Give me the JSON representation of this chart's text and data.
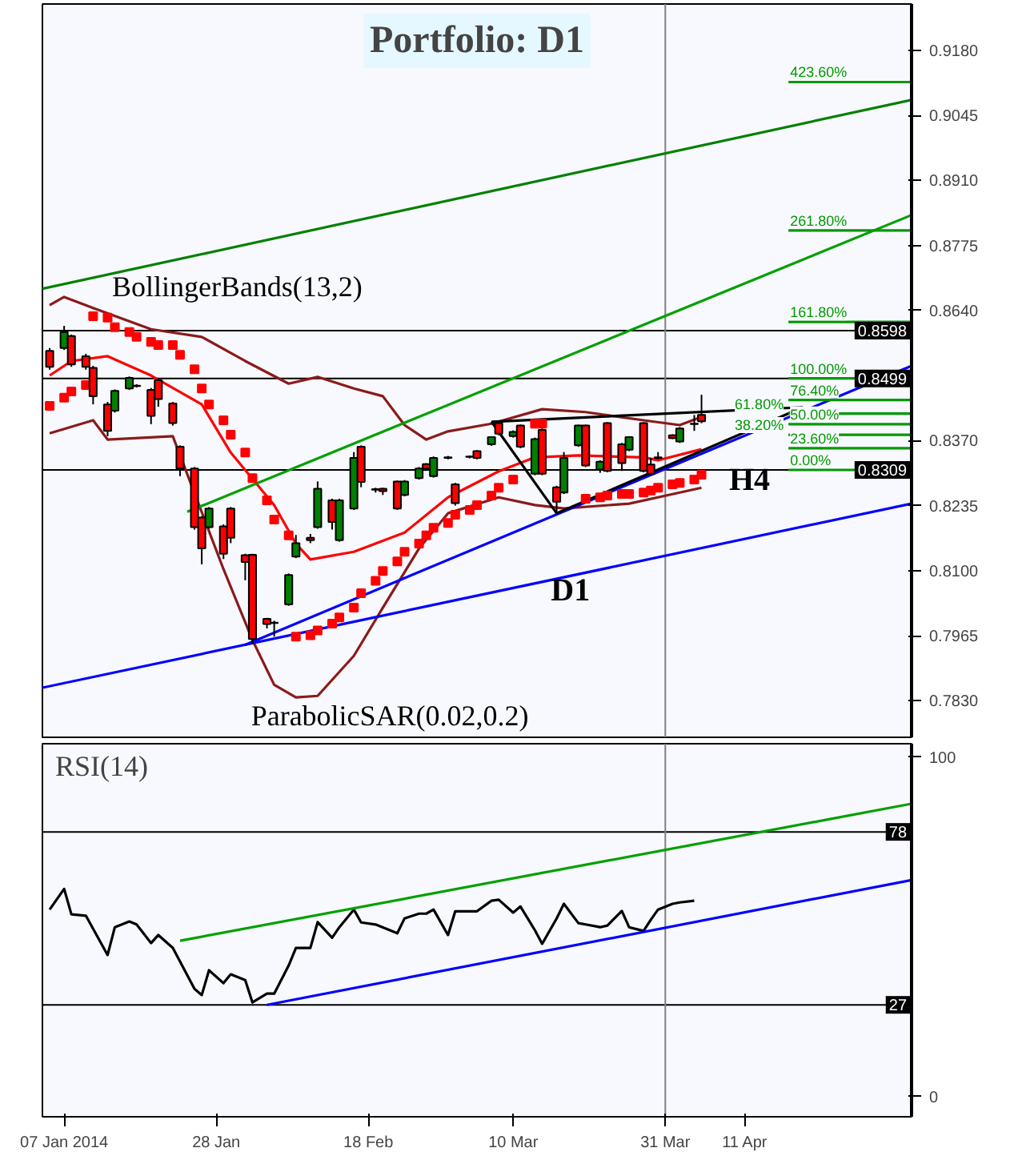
{
  "chart_data": [
    {
      "type": "candlestick",
      "title": "Portfolio: D1",
      "x": [
        "2014-01-05",
        "2014-01-07",
        "2014-01-08",
        "2014-01-10",
        "2014-01-11",
        "2014-01-13",
        "2014-01-14",
        "2014-01-16",
        "2014-01-17",
        "2014-01-19",
        "2014-01-20",
        "2014-01-22",
        "2014-01-23",
        "2014-01-25",
        "2014-01-26",
        "2014-01-27",
        "2014-01-29",
        "2014-01-30",
        "2014-02-01",
        "2014-02-02",
        "2014-02-04",
        "2014-02-05",
        "2014-02-07",
        "2014-02-08",
        "2014-02-10",
        "2014-02-11",
        "2014-02-13",
        "2014-02-14",
        "2014-02-16",
        "2014-02-17",
        "2014-02-19",
        "2014-02-20",
        "2014-02-22",
        "2014-02-23",
        "2014-02-25",
        "2014-02-26",
        "2014-02-27",
        "2014-03-01",
        "2014-03-02",
        "2014-03-04",
        "2014-03-05",
        "2014-03-07",
        "2014-03-08",
        "2014-03-10",
        "2014-03-11",
        "2014-03-13",
        "2014-03-14",
        "2014-03-16",
        "2014-03-17",
        "2014-03-19",
        "2014-03-20",
        "2014-03-22",
        "2014-03-23",
        "2014-03-25",
        "2014-03-26",
        "2014-03-28",
        "2014-03-29",
        "2014-03-30",
        "2014-04-01",
        "2014-04-02",
        "2014-04-04",
        "2014-04-05"
      ],
      "ohlc": [
        [
          0.8556,
          0.8562,
          0.8517,
          0.8523
        ],
        [
          0.8562,
          0.8608,
          0.8558,
          0.8595
        ],
        [
          0.8587,
          0.859,
          0.8523,
          0.8528
        ],
        [
          0.8545,
          0.855,
          0.8517,
          0.8523
        ],
        [
          0.8521,
          0.8525,
          0.8445,
          0.8462
        ],
        [
          0.8445,
          0.845,
          0.8379,
          0.839
        ],
        [
          0.8432,
          0.8476,
          0.8428,
          0.8473
        ],
        [
          0.8478,
          0.8503,
          0.8475,
          0.85
        ],
        [
          0.8484,
          0.8487,
          0.848,
          0.8483
        ],
        [
          0.8475,
          0.8479,
          0.8404,
          0.8421
        ],
        [
          0.8495,
          0.85,
          0.844,
          0.8456
        ],
        [
          0.8447,
          0.845,
          0.8401,
          0.8406
        ],
        [
          0.8357,
          0.836,
          0.8296,
          0.8312
        ],
        [
          0.8312,
          0.8315,
          0.8185,
          0.819
        ],
        [
          0.821,
          0.8213,
          0.8113,
          0.8146
        ],
        [
          0.819,
          0.8232,
          0.8187,
          0.8229
        ],
        [
          0.8192,
          0.8196,
          0.8124,
          0.8135
        ],
        [
          0.8229,
          0.8232,
          0.8157,
          0.8168
        ],
        [
          0.8132,
          0.8135,
          0.808,
          0.8118
        ],
        [
          0.8133,
          0.8135,
          0.7947,
          0.7958
        ],
        [
          0.8,
          0.8002,
          0.798,
          0.7989
        ],
        [
          0.7992,
          0.7996,
          0.7963,
          0.7991
        ],
        [
          0.803,
          0.8094,
          0.8027,
          0.8091
        ],
        [
          0.8129,
          0.8174,
          0.8126,
          0.8157
        ],
        [
          0.8168,
          0.8176,
          0.8157,
          0.8163
        ],
        [
          0.819,
          0.8285,
          0.8187,
          0.827
        ],
        [
          0.8246,
          0.8249,
          0.8185,
          0.8201
        ],
        [
          0.8163,
          0.8249,
          0.816,
          0.8246
        ],
        [
          0.8229,
          0.8346,
          0.8226,
          0.8334
        ],
        [
          0.8357,
          0.836,
          0.8273,
          0.8284
        ],
        [
          0.8269,
          0.8272,
          0.8262,
          0.8268
        ],
        [
          0.827,
          0.8272,
          0.8257,
          0.8265
        ],
        [
          0.8285,
          0.8287,
          0.8226,
          0.8229
        ],
        [
          0.8257,
          0.8288,
          0.8254,
          0.8285
        ],
        [
          0.8292,
          0.8315,
          0.8289,
          0.8312
        ],
        [
          0.8321,
          0.8323,
          0.8307,
          0.8312
        ],
        [
          0.8296,
          0.8337,
          0.8293,
          0.8334
        ],
        [
          0.8335,
          0.8338,
          0.8331,
          0.8334
        ],
        [
          0.8279,
          0.8282,
          0.8235,
          0.824
        ],
        [
          0.8337,
          0.8339,
          0.8333,
          0.8336
        ],
        [
          0.8348,
          0.835,
          0.8331,
          0.8334
        ],
        [
          0.8362,
          0.8379,
          0.8359,
          0.8377
        ],
        [
          0.8406,
          0.8408,
          0.8381,
          0.8384
        ],
        [
          0.8379,
          0.8391,
          0.8376,
          0.8388
        ],
        [
          0.8401,
          0.8403,
          0.8354,
          0.8357
        ],
        [
          0.8301,
          0.8376,
          0.8298,
          0.8373
        ],
        [
          0.8392,
          0.8395,
          0.8298,
          0.8301
        ],
        [
          0.8273,
          0.8276,
          0.8221,
          0.8243
        ],
        [
          0.8262,
          0.8346,
          0.8259,
          0.8334
        ],
        [
          0.836,
          0.8403,
          0.8357,
          0.8401
        ],
        [
          0.8401,
          0.8403,
          0.8315,
          0.8318
        ],
        [
          0.831,
          0.8329,
          0.8303,
          0.8326
        ],
        [
          0.8406,
          0.8408,
          0.8304,
          0.8307
        ],
        [
          0.8362,
          0.8365,
          0.8307,
          0.8323
        ],
        [
          0.8351,
          0.8379,
          0.8348,
          0.8377
        ],
        [
          0.8406,
          0.8408,
          0.8304,
          0.8307
        ],
        [
          0.832,
          0.8334,
          0.8298,
          0.8301
        ],
        [
          0.8335,
          0.8346,
          0.8331,
          0.8334
        ],
        [
          0.8381,
          0.8383,
          0.8373,
          0.8375
        ],
        [
          0.8368,
          0.8398,
          0.8365,
          0.8395
        ],
        [
          0.8405,
          0.8423,
          0.839,
          0.8404
        ],
        [
          0.8423,
          0.8465,
          0.8406,
          0.841
        ]
      ],
      "colors": [
        "#ff0000",
        "#008000",
        "#ff0000",
        "#ff0000",
        "#ff0000",
        "#ff0000",
        "#008000",
        "#008000",
        "#ff0000",
        "#ff0000",
        "#ff0000",
        "#ff0000",
        "#ff0000",
        "#ff0000",
        "#ff0000",
        "#008000",
        "#ff0000",
        "#ff0000",
        "#ff0000",
        "#ff0000",
        "#ff0000",
        "#ff0000",
        "#008000",
        "#008000",
        "#ff0000",
        "#008000",
        "#ff0000",
        "#008000",
        "#008000",
        "#ff0000",
        "#ff0000",
        "#ff0000",
        "#ff0000",
        "#008000",
        "#008000",
        "#ff0000",
        "#008000",
        "#ff0000",
        "#ff0000",
        "#ff0000",
        "#ff0000",
        "#008000",
        "#ff0000",
        "#008000",
        "#ff0000",
        "#008000",
        "#ff0000",
        "#ff0000",
        "#008000",
        "#008000",
        "#ff0000",
        "#008000",
        "#ff0000",
        "#ff0000",
        "#008000",
        "#ff0000",
        "#ff0000",
        "#ff0000",
        "#ff0000",
        "#008000",
        "#ff0000",
        "#ff0000"
      ],
      "series": [
        {
          "type": "line",
          "color": "#8b1a1a",
          "x": [
            "2014-01-05",
            "2014-01-07",
            "2014-01-11",
            "2014-01-19",
            "2014-01-26",
            "2014-02-01",
            "2014-02-07",
            "2014-02-11",
            "2014-02-16",
            "2014-02-20",
            "2014-02-23",
            "2014-02-26",
            "2014-03-01",
            "2014-03-07",
            "2014-03-14",
            "2014-03-20",
            "2014-03-28",
            "2014-04-02",
            "2014-04-05"
          ],
          "values": [
            0.8651,
            0.8668,
            0.8645,
            0.8601,
            0.8585,
            0.8535,
            0.8488,
            0.8502,
            0.8478,
            0.8462,
            0.8402,
            0.8372,
            0.8389,
            0.8405,
            0.8435,
            0.8429,
            0.8412,
            0.8402,
            0.8419
          ]
        },
        {
          "type": "line",
          "color": "#ff0000",
          "x": [
            "2014-01-05",
            "2014-01-08",
            "2014-01-13",
            "2014-01-19",
            "2014-01-26",
            "2014-01-30",
            "2014-02-05",
            "2014-02-08",
            "2014-02-10",
            "2014-02-16",
            "2014-02-23",
            "2014-03-01",
            "2014-03-08",
            "2014-03-13",
            "2014-03-19",
            "2014-03-28",
            "2014-03-30",
            "2014-04-05"
          ],
          "values": [
            0.8505,
            0.8535,
            0.8545,
            0.8505,
            0.8445,
            0.8345,
            0.8236,
            0.8156,
            0.8123,
            0.8139,
            0.8179,
            0.8252,
            0.8306,
            0.8335,
            0.8339,
            0.8335,
            0.8329,
            0.8352
          ]
        },
        {
          "type": "line",
          "color": "#8b1a1a",
          "x": [
            "2014-01-05",
            "2014-01-11",
            "2014-01-13",
            "2014-01-22",
            "2014-01-29",
            "2014-02-02",
            "2014-02-05",
            "2014-02-08",
            "2014-02-11",
            "2014-02-16",
            "2014-02-20",
            "2014-02-25",
            "2014-03-01",
            "2014-03-08",
            "2014-03-13",
            "2014-03-17",
            "2014-03-26",
            "2014-04-02",
            "2014-04-05"
          ],
          "values": [
            0.8385,
            0.8412,
            0.8372,
            0.8379,
            0.8103,
            0.7956,
            0.7863,
            0.7837,
            0.784,
            0.7923,
            0.8023,
            0.8146,
            0.8219,
            0.8252,
            0.8236,
            0.8229,
            0.8239,
            0.8262,
            0.8272
          ]
        },
        {
          "type": "scatter",
          "marker": "square",
          "color": "#ff0000",
          "x": [
            "2014-01-05",
            "2014-01-07",
            "2014-01-08",
            "2014-01-10",
            "2014-01-11",
            "2014-01-13",
            "2014-01-14",
            "2014-01-16",
            "2014-01-17",
            "2014-01-19",
            "2014-01-20",
            "2014-01-22",
            "2014-01-23",
            "2014-01-25",
            "2014-01-26",
            "2014-01-27",
            "2014-01-29",
            "2014-01-30",
            "2014-02-01",
            "2014-02-02",
            "2014-02-04",
            "2014-02-05",
            "2014-02-07",
            "2014-02-08",
            "2014-02-10",
            "2014-02-11",
            "2014-02-13",
            "2014-02-14",
            "2014-02-16",
            "2014-02-17",
            "2014-02-19",
            "2014-02-20",
            "2014-02-22",
            "2014-02-23",
            "2014-02-25",
            "2014-02-26",
            "2014-02-27",
            "2014-03-01",
            "2014-03-02",
            "2014-03-04",
            "2014-03-05",
            "2014-03-07",
            "2014-03-08",
            "2014-03-10",
            "2014-03-13",
            "2014-03-14",
            "2014-03-20",
            "2014-03-22",
            "2014-03-23",
            "2014-03-25",
            "2014-03-26",
            "2014-03-28",
            "2014-03-29",
            "2014-03-30",
            "2014-04-01",
            "2014-04-02",
            "2014-04-04",
            "2014-04-05"
          ],
          "values": [
            0.8442,
            0.8459,
            0.8472,
            0.8485,
            0.8628,
            0.8625,
            0.8605,
            0.8595,
            0.8585,
            0.8575,
            0.8568,
            0.8568,
            0.8548,
            0.8518,
            0.8478,
            0.8445,
            0.8412,
            0.8382,
            0.8345,
            0.8292,
            0.8246,
            0.8206,
            0.8173,
            0.7963,
            0.7966,
            0.7976,
            0.799,
            0.8003,
            0.8023,
            0.8053,
            0.8079,
            0.8099,
            0.8119,
            0.8139,
            0.8156,
            0.8173,
            0.8189,
            0.8199,
            0.8216,
            0.8226,
            0.8236,
            0.8256,
            0.8272,
            0.8289,
            0.8405,
            0.8405,
            0.8249,
            0.8252,
            0.8256,
            0.8259,
            0.8259,
            0.8262,
            0.8266,
            0.8272,
            0.8279,
            0.8282,
            0.8289,
            0.8299
          ]
        },
        {
          "type": "line",
          "color": "#008000",
          "x": [
            "2014-01-04",
            "2014-05-04"
          ],
          "values": [
            0.8685,
            0.9077
          ]
        },
        {
          "type": "line",
          "color": "#00a000",
          "x": [
            "2014-01-24",
            "2014-05-04"
          ],
          "values": [
            0.8222,
            0.8838
          ]
        },
        {
          "type": "line",
          "color": "#0000ff",
          "x": [
            "2014-01-04",
            "2014-05-04"
          ],
          "values": [
            0.7857,
            0.8239
          ]
        },
        {
          "type": "line",
          "color": "#0000ff",
          "x": [
            "2014-02-01",
            "2014-05-04"
          ],
          "values": [
            0.7946,
            0.8525
          ]
        },
        {
          "type": "line",
          "color": "#000000",
          "x": [
            "2014-03-07",
            "2014-03-16",
            "2014-04-19"
          ],
          "values": [
            0.8409,
            0.8219,
            0.8439
          ]
        },
        {
          "type": "line",
          "color": "#000000",
          "x": [
            "2014-03-07",
            "2014-04-19"
          ],
          "values": [
            0.8409,
            0.8439
          ]
        },
        {
          "type": "line",
          "name": "0.00%",
          "color": "#009900",
          "x": [
            "2014-04-17",
            "2014-05-04"
          ],
          "values": [
            0.8309,
            0.8309
          ]
        },
        {
          "type": "line",
          "name": "23.60%",
          "color": "#009900",
          "x": [
            "2014-04-17",
            "2014-05-04"
          ],
          "values": [
            0.8354,
            0.8354
          ]
        },
        {
          "type": "line",
          "name": "38.20%",
          "color": "#009900",
          "x": [
            "2014-04-17",
            "2014-05-04"
          ],
          "values": [
            0.8382,
            0.8382
          ]
        },
        {
          "type": "line",
          "name": "50.00%",
          "color": "#009900",
          "x": [
            "2014-04-17",
            "2014-05-04"
          ],
          "values": [
            0.8404,
            0.8404
          ]
        },
        {
          "type": "line",
          "name": "61.80%",
          "color": "#009900",
          "x": [
            "2014-04-17",
            "2014-05-04"
          ],
          "values": [
            0.8426,
            0.8426
          ]
        },
        {
          "type": "line",
          "name": "76.40%",
          "color": "#009900",
          "x": [
            "2014-04-17",
            "2014-05-04"
          ],
          "values": [
            0.8454,
            0.8454
          ]
        },
        {
          "type": "line",
          "name": "100.00%",
          "color": "#009900",
          "x": [
            "2014-04-17",
            "2014-05-04"
          ],
          "values": [
            0.8499,
            0.8499
          ]
        },
        {
          "type": "line",
          "name": "161.80%",
          "color": "#009900",
          "x": [
            "2014-04-17",
            "2014-05-04"
          ],
          "values": [
            0.8616,
            0.8616
          ]
        },
        {
          "type": "line",
          "name": "261.80%",
          "color": "#009900",
          "x": [
            "2014-04-17",
            "2014-05-04"
          ],
          "values": [
            0.8806,
            0.8806
          ]
        },
        {
          "type": "line",
          "name": "423.60%",
          "color": "#009900",
          "x": [
            "2014-04-17",
            "2014-05-04"
          ],
          "values": [
            0.9114,
            0.9114
          ]
        }
      ],
      "xlim": [
        "2014-01-04",
        "2014-05-04"
      ],
      "ylim": [
        0.7754,
        0.9276
      ],
      "yticks": [
        {
          "value": 0.918,
          "label": "0.9180"
        },
        {
          "value": 0.9045,
          "label": "0.9045"
        },
        {
          "value": 0.891,
          "label": "0.8910"
        },
        {
          "value": 0.8775,
          "label": "0.8775"
        },
        {
          "value": 0.864,
          "label": "0.8640"
        },
        {
          "value": 0.837,
          "label": "0.8370"
        },
        {
          "value": 0.8235,
          "label": "0.8235"
        },
        {
          "value": 0.81,
          "label": "0.8100"
        },
        {
          "value": 0.7965,
          "label": "0.7965"
        },
        {
          "value": 0.783,
          "label": "0.7830"
        }
      ],
      "tick_labels": "y",
      "ref_lines": [
        {
          "axis": "y",
          "value": 0.8598,
          "label": "0.8598",
          "color": "#000000"
        },
        {
          "axis": "y",
          "value": 0.8499,
          "label": "0.8499",
          "color": "#000000"
        },
        {
          "axis": "y",
          "value": 0.8309,
          "label": "0.8309",
          "color": "#000000"
        },
        {
          "axis": "x",
          "value": "2014-03-31",
          "color": "#808080"
        }
      ],
      "annotations": [
        "BollingerBands(13,2)",
        "ParabolicSAR(0.02,0.2)",
        "D1",
        "H4"
      ]
    },
    {
      "type": "line",
      "title": "RSI(14)",
      "series": [
        {
          "color": "#000000",
          "x": [
            "2014-01-05",
            "2014-01-07",
            "2014-01-08",
            "2014-01-10",
            "2014-01-13",
            "2014-01-14",
            "2014-01-16",
            "2014-01-17",
            "2014-01-19",
            "2014-01-20",
            "2014-01-22",
            "2014-01-25",
            "2014-01-26",
            "2014-01-27",
            "2014-01-29",
            "2014-01-30",
            "2014-02-01",
            "2014-02-02",
            "2014-02-04",
            "2014-02-05",
            "2014-02-07",
            "2014-02-08",
            "2014-02-10",
            "2014-02-11",
            "2014-02-13",
            "2014-02-14",
            "2014-02-16",
            "2014-02-17",
            "2014-02-19",
            "2014-02-22",
            "2014-02-23",
            "2014-02-25",
            "2014-02-26",
            "2014-02-27",
            "2014-03-01",
            "2014-03-02",
            "2014-03-05",
            "2014-03-07",
            "2014-03-08",
            "2014-03-10",
            "2014-03-11",
            "2014-03-13",
            "2014-03-14",
            "2014-03-16",
            "2014-03-17",
            "2014-03-19",
            "2014-03-20",
            "2014-03-22",
            "2014-03-23",
            "2014-03-25",
            "2014-03-26",
            "2014-03-28",
            "2014-03-29",
            "2014-03-30",
            "2014-04-01",
            "2014-04-02",
            "2014-04-04"
          ],
          "values": [
            55.1,
            61.2,
            53.7,
            53.3,
            41.7,
            49.9,
            51.6,
            50.7,
            45.2,
            47.6,
            43.8,
            31.7,
            29.9,
            37.2,
            33.4,
            36.0,
            34.3,
            27.7,
            30.3,
            30.3,
            38.6,
            43.8,
            43.8,
            51.4,
            46.8,
            49.9,
            55.1,
            51.3,
            50.7,
            48.1,
            52.5,
            53.9,
            53.9,
            55.1,
            47.6,
            54.6,
            54.6,
            57.7,
            58.0,
            54.2,
            56.0,
            49.0,
            45.0,
            52.5,
            56.8,
            51.1,
            50.7,
            49.9,
            50.4,
            54.7,
            49.9,
            48.8,
            52.1,
            55.1,
            56.8,
            57.2,
            57.7
          ]
        },
        {
          "color": "#00a000",
          "x": [
            "2014-01-23",
            "2014-05-04"
          ],
          "values": [
            45.9,
            86.3
          ]
        },
        {
          "color": "#0000ff",
          "x": [
            "2014-02-04",
            "2014-05-04"
          ],
          "values": [
            27.0,
            63.8
          ]
        }
      ],
      "xlim": [
        "2014-01-04",
        "2014-05-04"
      ],
      "ylim": [
        -6,
        104
      ],
      "xticks": [
        {
          "value": "2014-01-07",
          "label": "07 Jan 2014"
        },
        {
          "value": "2014-01-28",
          "label": "28 Jan"
        },
        {
          "value": "2014-02-18",
          "label": "18 Feb"
        },
        {
          "value": "2014-03-10",
          "label": "10 Mar"
        },
        {
          "value": "2014-03-31",
          "label": "31 Mar"
        },
        {
          "value": "2014-04-11",
          "label": "11 Apr"
        }
      ],
      "yticks": [
        0,
        100
      ],
      "ref_lines": [
        {
          "axis": "y",
          "value": 78,
          "label": "78",
          "color": "#000000"
        },
        {
          "axis": "y",
          "value": 27,
          "label": "27",
          "color": "#000000"
        },
        {
          "axis": "x",
          "value": "2014-03-31",
          "color": "#808080"
        }
      ]
    }
  ]
}
